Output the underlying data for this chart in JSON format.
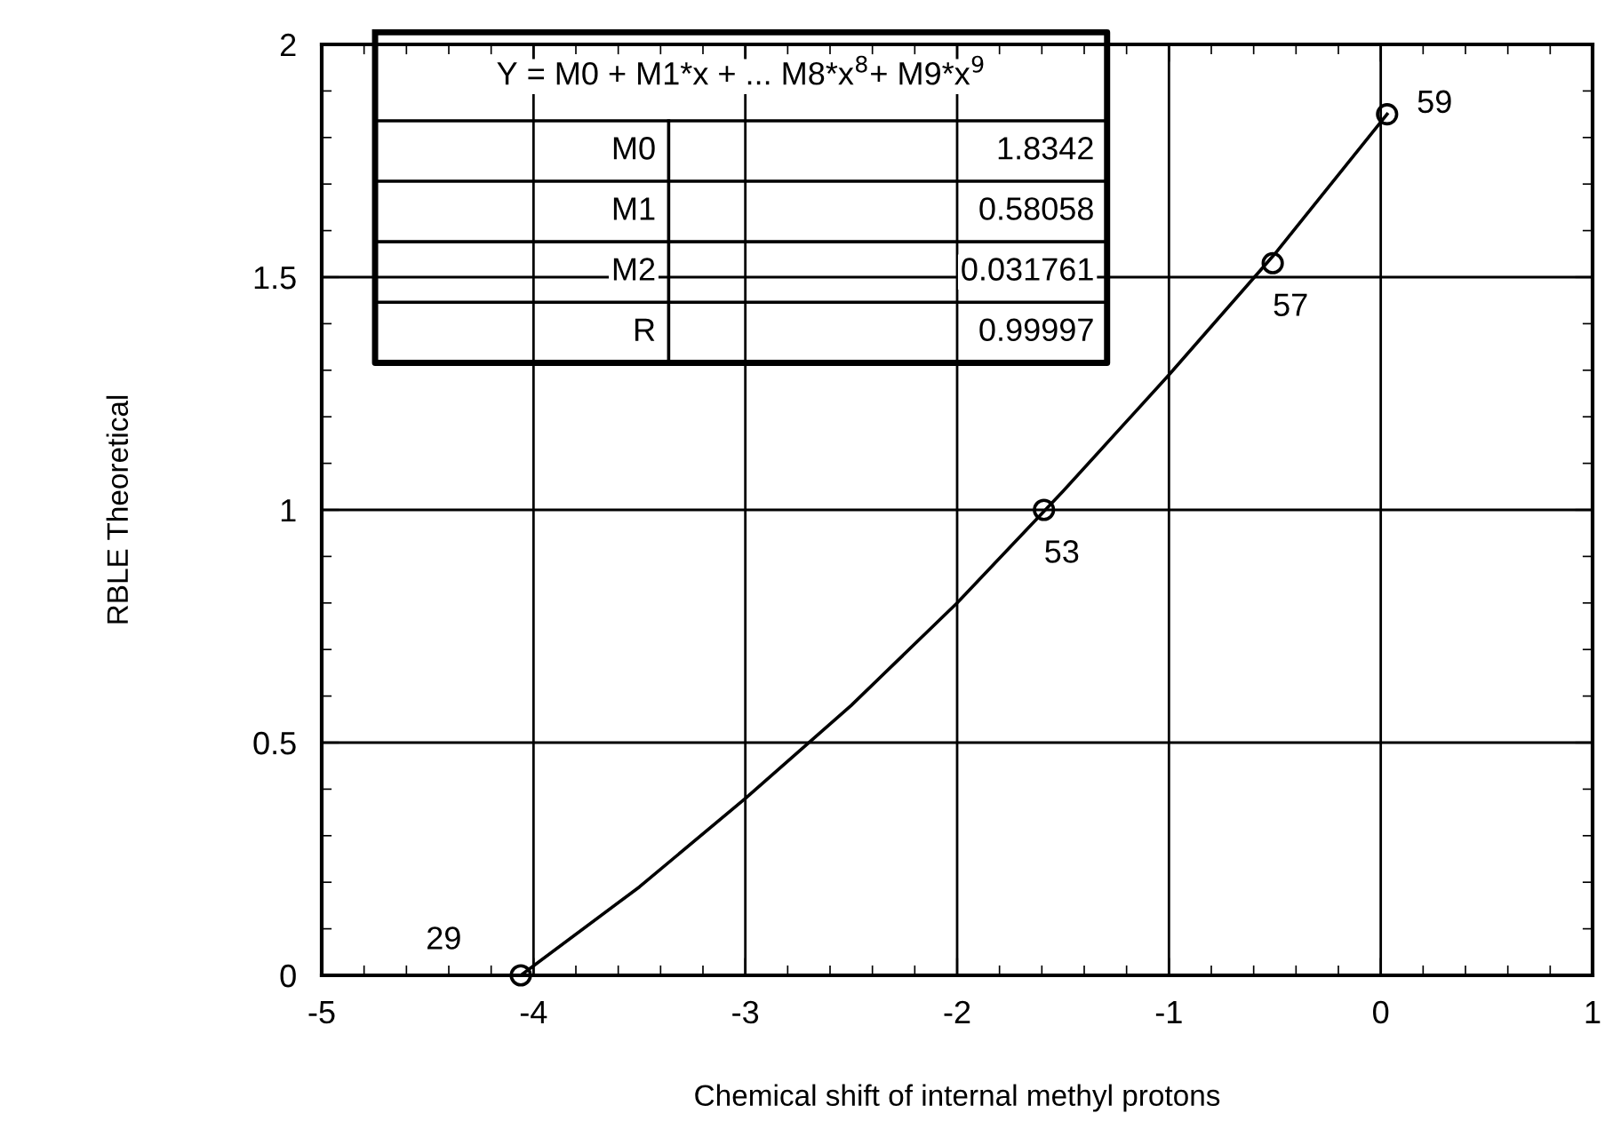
{
  "chart_data": {
    "type": "scatter",
    "xlabel": "Chemical shift of internal methyl protons",
    "ylabel": "RBLE Theoretical",
    "xlim": [
      -5,
      1
    ],
    "xticks": [
      -5,
      -4,
      -3,
      -2,
      -1,
      0,
      1
    ],
    "ylim": [
      0,
      2
    ],
    "yticks": [
      0,
      0.5,
      1,
      1.5,
      2
    ],
    "grid": true,
    "series": [
      {
        "type": "line",
        "color": "#000000",
        "marker": "none",
        "x": [
          -4.06,
          -3.5,
          -3,
          -2.5,
          -2,
          -1.5,
          -1,
          -0.5,
          0.03
        ],
        "values": [
          0.0,
          0.19,
          0.38,
          0.58,
          0.8,
          1.04,
          1.29,
          1.55,
          1.85
        ]
      },
      {
        "color": "#000000",
        "marker": "circle",
        "x": [
          -4.06,
          -1.59,
          -0.51,
          0.03
        ],
        "values": [
          0.0,
          1.0,
          1.53,
          1.85
        ]
      }
    ],
    "annotations": [
      "Y = M0 + M1*x + ... M8*x$^{8}$+ M9*x$^{9}$",
      "M0",
      "1.8342",
      "M1",
      "0.58058",
      "M2",
      "0.031761",
      "R",
      "0.99997",
      {
        "text": "29",
        "x": -4.06,
        "y": 0.0
      },
      {
        "text": "53",
        "x": -1.59,
        "y": 1.0
      },
      {
        "text": "57",
        "x": -0.51,
        "y": 1.53
      },
      {
        "text": "59",
        "x": 0.03,
        "y": 1.85
      }
    ]
  }
}
